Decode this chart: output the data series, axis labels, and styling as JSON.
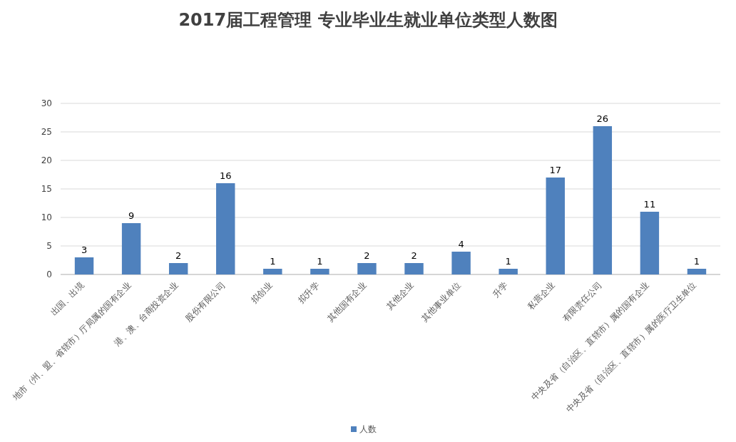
{
  "chart_data": {
    "type": "bar",
    "title": "2017届工程管理 专业毕业生就业单位类型人数图",
    "categories": [
      "出国、出境",
      "地市（州、盟、省辖市）厅局属的国有企业",
      "港、澳、台商投资企业",
      "股份有限公司",
      "拟创业",
      "拟升学",
      "其他国有企业",
      "其他企业",
      "其他事业单位",
      "升学",
      "私营企业",
      "有限责任公司",
      "中央及省（自治区、直辖市）属的国有企业",
      "中央及省（自治区、直辖市）属的医疗卫生单位"
    ],
    "series": [
      {
        "name": "人数",
        "color": "#4f81bd",
        "values": [
          3,
          9,
          2,
          16,
          1,
          1,
          2,
          2,
          4,
          1,
          17,
          26,
          11,
          1
        ]
      }
    ],
    "ylim": [
      0,
      30
    ],
    "yticks": [
      0,
      5,
      10,
      15,
      20,
      25,
      30
    ],
    "grid": "y",
    "legend": "bottom",
    "data_labels": true
  }
}
